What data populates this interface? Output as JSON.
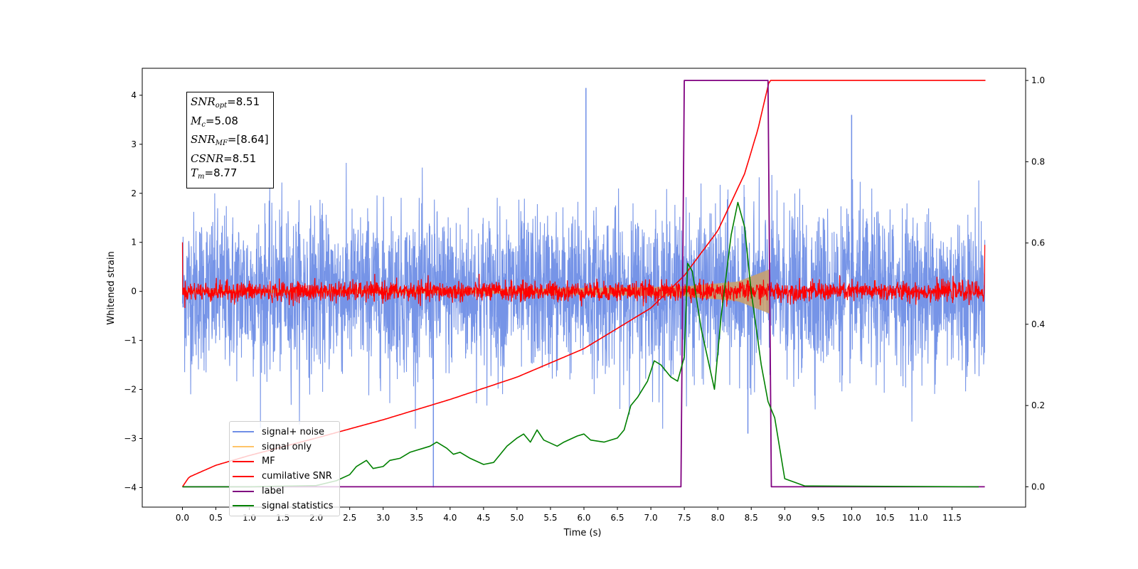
{
  "chart_data": {
    "type": "line",
    "xlabel": "Time (s)",
    "ylabel": "Whitened strain",
    "xlim": [
      -0.6,
      12.6
    ],
    "ylim": [
      -4.4,
      4.55
    ],
    "ylim_right": [
      -0.05,
      1.03
    ],
    "x_ticks": [
      "0.0",
      "0.5",
      "1.0",
      "1.5",
      "2.0",
      "2.5",
      "3.0",
      "3.5",
      "4.0",
      "4.5",
      "5.0",
      "5.5",
      "6.0",
      "6.5",
      "7.0",
      "7.5",
      "8.0",
      "8.5",
      "9.0",
      "9.5",
      "10.0",
      "10.5",
      "11.0",
      "11.5"
    ],
    "y_ticks_left": [
      "4",
      "3",
      "2",
      "1",
      "0",
      "−1",
      "−2",
      "−3",
      "−4"
    ],
    "y_ticks_right": [
      "1.0",
      "0.8",
      "0.6",
      "0.4",
      "0.2",
      "0.0"
    ],
    "grid": false,
    "legend_position": "lower-left",
    "series": [
      {
        "name": "signal+ noise",
        "color": "#6f8ee6",
        "axis": "left",
        "x_range": [
          0,
          11.99
        ],
        "amplitude_std": 0.8,
        "spikes": [
          {
            "x": 6.03,
            "y": 4.15
          },
          {
            "x": 3.75,
            "y": -4.0
          },
          {
            "x": 10.0,
            "y": 3.6
          },
          {
            "x": 8.45,
            "y": -2.9
          }
        ]
      },
      {
        "name": "signal only",
        "color": "#ffc468",
        "axis": "left",
        "x_range": [
          0,
          8.77
        ],
        "envelope": [
          [
            0,
            0.03
          ],
          [
            5.0,
            0.05
          ],
          [
            7.5,
            0.1
          ],
          [
            8.3,
            0.2
          ],
          [
            8.77,
            0.45
          ]
        ]
      },
      {
        "name": "MF",
        "color": "#ff0000",
        "axis": "left",
        "x_range": [
          0,
          11.99
        ],
        "amplitude_std": 0.1
      },
      {
        "name": "cumilative SNR",
        "color": "#ff0000",
        "axis": "right",
        "x": [
          0,
          0.1,
          0.5,
          1,
          2,
          3,
          4,
          5,
          6,
          7,
          7.5,
          8,
          8.4,
          8.6,
          8.77,
          12
        ],
        "y": [
          0.0,
          0.024,
          0.053,
          0.077,
          0.12,
          0.165,
          0.215,
          0.27,
          0.34,
          0.44,
          0.52,
          0.63,
          0.77,
          0.88,
          1.0,
          1.0
        ]
      },
      {
        "name": "label",
        "color": "#800080",
        "axis": "right",
        "x": [
          0,
          7.45,
          7.5,
          8.75,
          8.8,
          11.99
        ],
        "y": [
          0,
          0,
          1,
          1,
          0,
          0
        ]
      },
      {
        "name": "signal statistics",
        "color": "#008000",
        "axis": "right",
        "x": [
          0,
          1,
          2,
          2.3,
          2.5,
          2.6,
          2.75,
          2.85,
          3,
          3.1,
          3.25,
          3.4,
          3.5,
          3.6,
          3.7,
          3.8,
          3.95,
          4.05,
          4.15,
          4.3,
          4.5,
          4.65,
          4.75,
          4.85,
          5.0,
          5.1,
          5.2,
          5.3,
          5.4,
          5.6,
          5.7,
          5.9,
          6.0,
          6.1,
          6.3,
          6.5,
          6.6,
          6.7,
          6.8,
          6.95,
          7.05,
          7.15,
          7.3,
          7.4,
          7.5,
          7.55,
          7.62,
          7.75,
          7.95,
          8.05,
          8.2,
          8.3,
          8.4,
          8.5,
          8.65,
          8.75,
          8.85,
          9.0,
          9.3,
          11.9
        ],
        "y": [
          0,
          0,
          0.003,
          0.015,
          0.03,
          0.05,
          0.065,
          0.045,
          0.05,
          0.065,
          0.07,
          0.085,
          0.09,
          0.095,
          0.1,
          0.11,
          0.095,
          0.08,
          0.085,
          0.07,
          0.055,
          0.06,
          0.08,
          0.1,
          0.12,
          0.13,
          0.11,
          0.14,
          0.115,
          0.1,
          0.11,
          0.125,
          0.13,
          0.115,
          0.11,
          0.12,
          0.14,
          0.2,
          0.22,
          0.26,
          0.31,
          0.3,
          0.27,
          0.26,
          0.32,
          0.55,
          0.53,
          0.39,
          0.24,
          0.42,
          0.62,
          0.7,
          0.64,
          0.48,
          0.3,
          0.21,
          0.17,
          0.02,
          0.002,
          0
        ]
      }
    ],
    "annotations": {
      "snr_opt": "8.51",
      "mc": "5.08",
      "snr_mf": "[8.64]",
      "csnr": "8.51",
      "tm": "8.77"
    }
  },
  "annotation_box": {
    "snr_opt_label": "SNR",
    "snr_opt_sub": "opt",
    "snr_opt_value": "=8.51",
    "mc_label": "M",
    "mc_sub": "c",
    "mc_value": "=5.08",
    "snr_mf_label": "SNR",
    "snr_mf_sub": "MF",
    "snr_mf_value": "=[8.64]",
    "csnr_label": "CSNR",
    "csnr_value": "=8.51",
    "tm_label": "T",
    "tm_sub": "m",
    "tm_value": "=8.77"
  },
  "legend": [
    {
      "label": "signal+ noise",
      "color": "#6f8ee6"
    },
    {
      "label": "signal only",
      "color": "#ffc468"
    },
    {
      "label": "MF",
      "color": "#ff0000"
    },
    {
      "label": "cumilative SNR",
      "color": "#ff0000"
    },
    {
      "label": "label",
      "color": "#800080"
    },
    {
      "label": "signal statistics",
      "color": "#008000"
    }
  ]
}
